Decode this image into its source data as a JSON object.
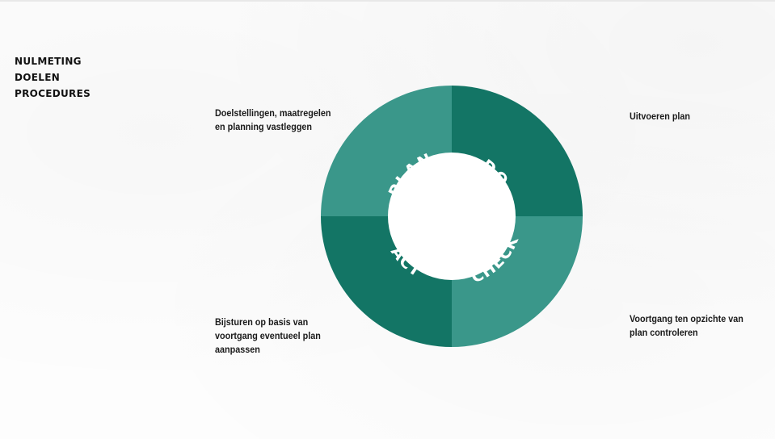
{
  "headings": [
    "NULMETING",
    "DOELEN",
    "PROCEDURES"
  ],
  "cycle": {
    "segments": [
      {
        "key": "plan",
        "label": "PLAN",
        "color": "#3a978a"
      },
      {
        "key": "do",
        "label": "DO",
        "color": "#137565"
      },
      {
        "key": "check",
        "label": "CHECK",
        "color": "#3a978a"
      },
      {
        "key": "act",
        "label": "ACT",
        "color": "#137565"
      }
    ]
  },
  "notes": {
    "plan": "Doelstellingen, maatregelen\nen planning vastleggen",
    "do": "Uitvoeren plan",
    "act": "Bijsturen op basis van\nvoortgang eventueel plan\naanpassen",
    "check": "Voortgang ten opzichte van\nplan controleren"
  }
}
